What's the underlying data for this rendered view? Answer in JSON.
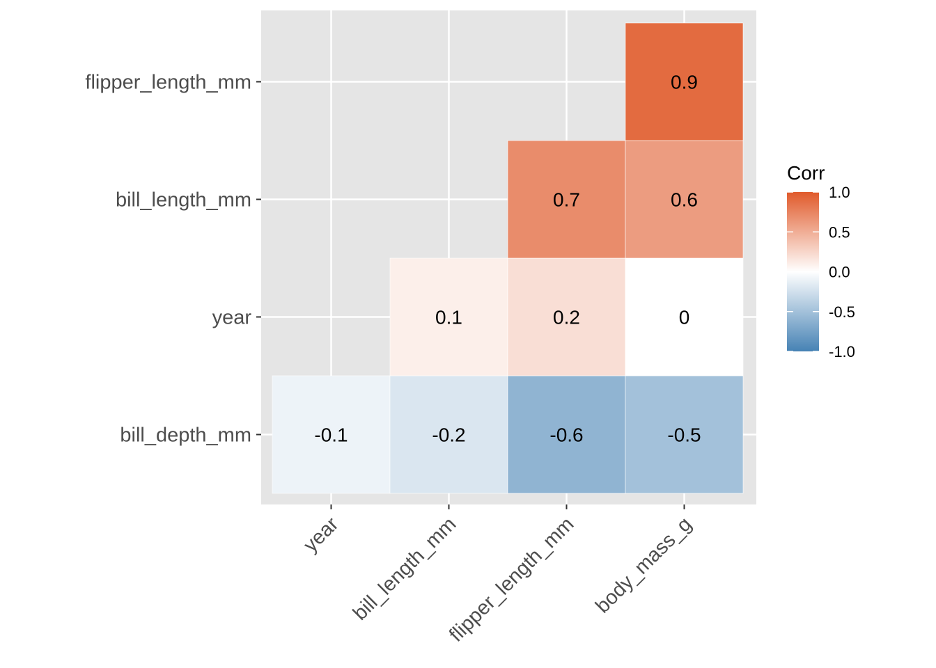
{
  "chart_data": {
    "type": "heatmap",
    "x_categories": [
      "year",
      "bill_length_mm",
      "flipper_length_mm",
      "body_mass_g"
    ],
    "y_categories": [
      "bill_depth_mm",
      "year",
      "bill_length_mm",
      "flipper_length_mm"
    ],
    "cells": [
      {
        "x": "year",
        "y": "bill_depth_mm",
        "value": -0.1,
        "label": "-0.1"
      },
      {
        "x": "bill_length_mm",
        "y": "bill_depth_mm",
        "value": -0.2,
        "label": "-0.2"
      },
      {
        "x": "flipper_length_mm",
        "y": "bill_depth_mm",
        "value": -0.6,
        "label": "-0.6"
      },
      {
        "x": "body_mass_g",
        "y": "bill_depth_mm",
        "value": -0.5,
        "label": "-0.5"
      },
      {
        "x": "bill_length_mm",
        "y": "year",
        "value": 0.1,
        "label": "0.1"
      },
      {
        "x": "flipper_length_mm",
        "y": "year",
        "value": 0.2,
        "label": "0.2"
      },
      {
        "x": "body_mass_g",
        "y": "year",
        "value": 0.0,
        "label": "0"
      },
      {
        "x": "flipper_length_mm",
        "y": "bill_length_mm",
        "value": 0.7,
        "label": "0.7"
      },
      {
        "x": "body_mass_g",
        "y": "bill_length_mm",
        "value": 0.6,
        "label": "0.6"
      },
      {
        "x": "body_mass_g",
        "y": "flipper_length_mm",
        "value": 0.9,
        "label": "0.9"
      }
    ],
    "legend": {
      "title": "Corr",
      "labels": [
        "1.0",
        "0.5",
        "0.0",
        "-0.5",
        "-1.0"
      ],
      "label_values": [
        1.0,
        0.5,
        0.0,
        -0.5,
        -1.0
      ],
      "placement": "right"
    },
    "colors": {
      "low": "#4682b4",
      "mid": "#ffffff",
      "high": "#e05a2b",
      "panel_background": "#e5e5e5",
      "grid": "#ffffff"
    },
    "value_range": [
      -1,
      1
    ],
    "grid": true,
    "xlabel": "",
    "ylabel": ""
  }
}
